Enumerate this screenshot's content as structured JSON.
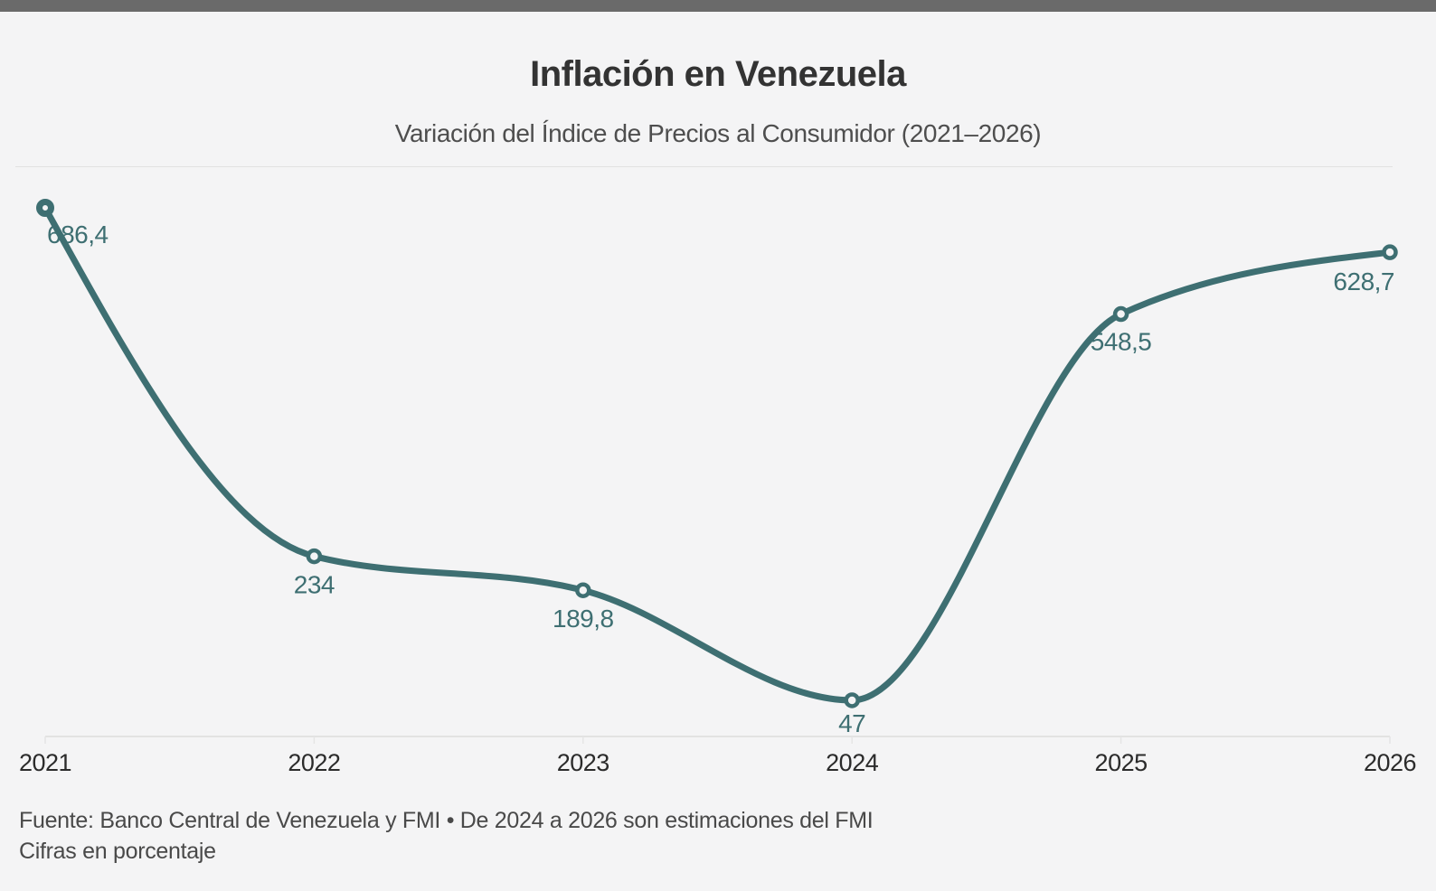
{
  "page": {
    "background_color": "#f4f4f5",
    "topbar_color": "#6a6a6a"
  },
  "header": {
    "title": "Inflación en Venezuela",
    "subtitle": "Variación del Índice de Precios al Consumidor (2021–2026)"
  },
  "footer": {
    "source_note": "Fuente: Banco Central de Venezuela y FMI • De 2024 a 2026 son estimaciones del FMI",
    "unit_note": "Cifras en porcentaje"
  },
  "chart_data": {
    "type": "line",
    "title": "Inflación en Venezuela",
    "subtitle": "Variación del Índice de Precios al Consumidor (2021–2026)",
    "categories": [
      "2021",
      "2022",
      "2023",
      "2024",
      "2025",
      "2026"
    ],
    "values": [
      686.4,
      234,
      189.8,
      47,
      548.5,
      628.7
    ],
    "value_labels": [
      "686,4",
      "234",
      "189,8",
      "47",
      "548,5",
      "628,7"
    ],
    "xlabel": "",
    "ylabel": "Cifras en porcentaje",
    "ylim": [
      0,
      700
    ],
    "curve": "monotone",
    "grid": "off",
    "legend": "none",
    "line_color": "#3E6F72",
    "marker_fill": "#f4f4f5",
    "axis_color": "#dcdcdc",
    "tick_color": "#e5e5e5"
  }
}
